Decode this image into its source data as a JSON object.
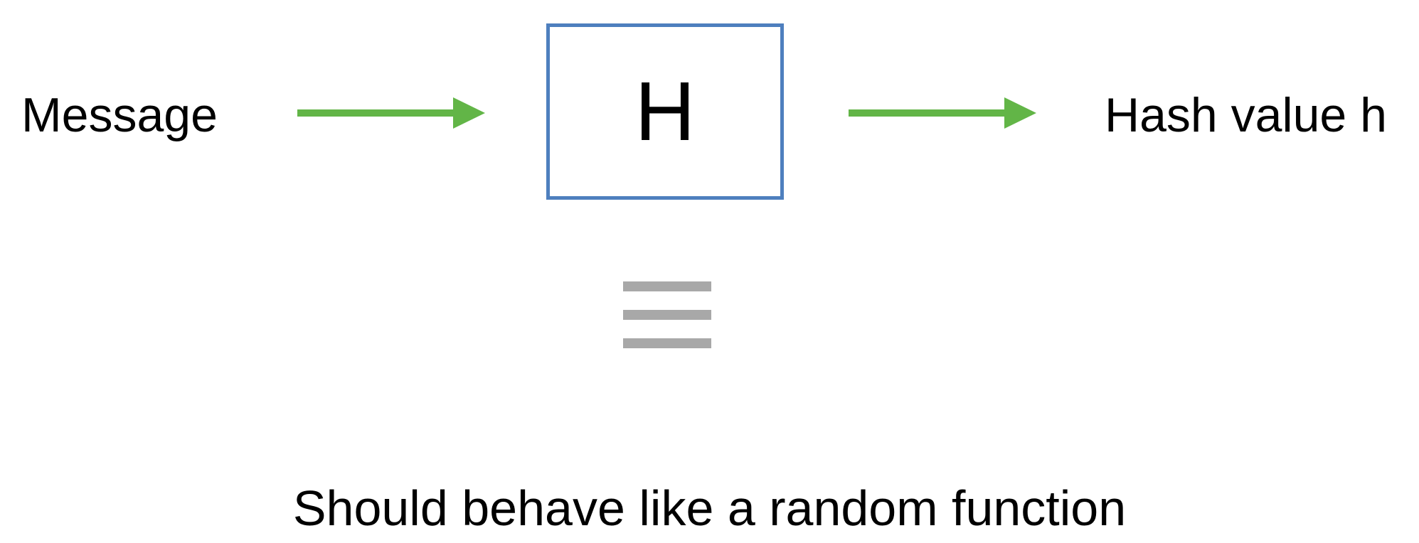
{
  "diagram": {
    "input_label": "Message",
    "function_label": "H",
    "output_label": "Hash value h",
    "equivalence_symbol": "triple-bar-equivalence-icon",
    "caption": "Should behave like a random function"
  },
  "colors": {
    "arrow": "#62b547",
    "box_border": "#4e7fbe",
    "equivalence_bars": "#a8a8a8",
    "text": "#000000"
  }
}
